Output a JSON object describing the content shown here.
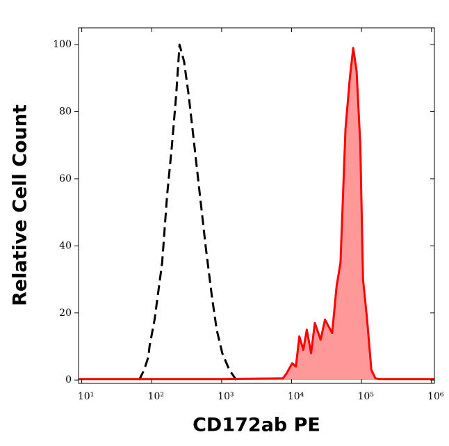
{
  "chart_data": {
    "type": "histogram-overlay",
    "xlabel": "CD172ab PE",
    "ylabel": "Relative Cell Count",
    "xscale": "log",
    "xlim": [
      9,
      1100000
    ],
    "ylim": [
      -1,
      105
    ],
    "xticks": [
      {
        "value": 10,
        "label": "10¹"
      },
      {
        "value": 100,
        "label": "10²"
      },
      {
        "value": 1000,
        "label": "10³"
      },
      {
        "value": 10000,
        "label": "10⁴"
      },
      {
        "value": 100000,
        "label": "10⁵"
      },
      {
        "value": 1000000,
        "label": "10⁶"
      }
    ],
    "yticks": [
      0,
      20,
      40,
      60,
      80,
      100
    ],
    "series": [
      {
        "color": "#000000",
        "dashed": true,
        "x": [
          66,
          78,
          90,
          93,
          110,
          141,
          166,
          195,
          224,
          250,
          290,
          337,
          407,
          490,
          590,
          725,
          850,
          1020,
          1290,
          1620
        ],
        "values": [
          0,
          3,
          7,
          10,
          18,
          35,
          55,
          70,
          85,
          100,
          95,
          85,
          70,
          55,
          40,
          25,
          15,
          8,
          3,
          0
        ]
      },
      {
        "color": "#ff0000",
        "fill": "#ff9999",
        "x": [
          9,
          100,
          1000,
          7500,
          8500,
          10200,
          11500,
          12900,
          14700,
          16500,
          19000,
          21500,
          26000,
          30000,
          38000,
          44000,
          50000,
          59000,
          68000,
          76000,
          85000,
          96000,
          105000,
          120000,
          138000,
          158000,
          180000,
          1000000,
          1100000
        ],
        "values": [
          0.3,
          0.3,
          0.3,
          0.5,
          2,
          5,
          4,
          13,
          9,
          15,
          8,
          17,
          12,
          18,
          14,
          28,
          35,
          75,
          90,
          99,
          92,
          70,
          30,
          18,
          3,
          0.5,
          0.3,
          0.3,
          0.3
        ]
      }
    ]
  }
}
